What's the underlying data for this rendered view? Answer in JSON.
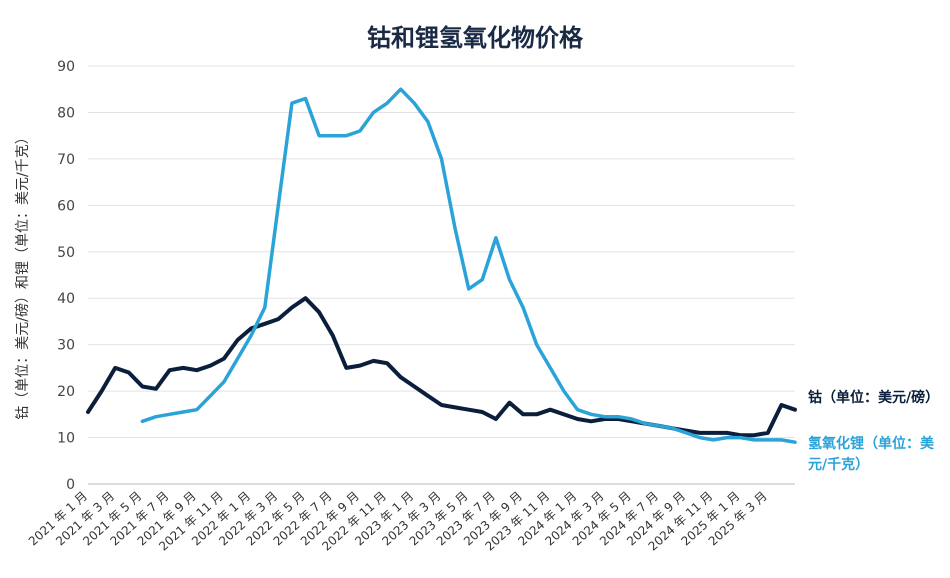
{
  "chart_data": {
    "type": "line",
    "title": "钴和锂氢氧化物价格",
    "ylabel": "钴（单位：美元/磅）和锂（单位：美元/千克）",
    "ylim": [
      0,
      90
    ],
    "yticks": [
      0,
      10,
      20,
      30,
      40,
      50,
      60,
      70,
      80,
      90
    ],
    "xlim": [
      "2021-01",
      "2025-05"
    ],
    "xticks": [
      {
        "label": "2021 年 1 月",
        "date": "2021-01"
      },
      {
        "label": "2021 年 3 月",
        "date": "2021-03"
      },
      {
        "label": "2021 年 5 月",
        "date": "2021-05"
      },
      {
        "label": "2021 年 7 月",
        "date": "2021-07"
      },
      {
        "label": "2021 年 9 月",
        "date": "2021-09"
      },
      {
        "label": "2021 年 11 月",
        "date": "2021-11"
      },
      {
        "label": "2022 年 1 月",
        "date": "2022-01"
      },
      {
        "label": "2022 年 3 月",
        "date": "2022-03"
      },
      {
        "label": "2022 年 5 月",
        "date": "2022-05"
      },
      {
        "label": "2022 年 7 月",
        "date": "2022-07"
      },
      {
        "label": "2022 年 9 月",
        "date": "2022-09"
      },
      {
        "label": "2022 年 11 月",
        "date": "2022-11"
      },
      {
        "label": "2023 年 1 月",
        "date": "2023-01"
      },
      {
        "label": "2023 年 3 月",
        "date": "2023-03"
      },
      {
        "label": "2023 年 5 月",
        "date": "2023-05"
      },
      {
        "label": "2023 年 7 月",
        "date": "2023-07"
      },
      {
        "label": "2023 年 9 月",
        "date": "2023-09"
      },
      {
        "label": "2023 年 11 月",
        "date": "2023-11"
      },
      {
        "label": "2024 年 1 月",
        "date": "2024-01"
      },
      {
        "label": "2024 年 3 月",
        "date": "2024-03"
      },
      {
        "label": "2024 年 5 月",
        "date": "2024-05"
      },
      {
        "label": "2024 年 7 月",
        "date": "2024-07"
      },
      {
        "label": "2024 年 9 月",
        "date": "2024-09"
      },
      {
        "label": "2024 年 11 月",
        "date": "2024-11"
      },
      {
        "label": "2025 年 1 月",
        "date": "2025-01"
      },
      {
        "label": "2025 年 3 月",
        "date": "2025-03"
      }
    ],
    "grid": true,
    "legend": "right",
    "series": [
      {
        "name": "钴（单位：美元/磅）",
        "color": "#0b1e3c",
        "points": [
          [
            "2021-01",
            15.5
          ],
          [
            "2021-02",
            20
          ],
          [
            "2021-03",
            25
          ],
          [
            "2021-04",
            24
          ],
          [
            "2021-05",
            21
          ],
          [
            "2021-06",
            20.5
          ],
          [
            "2021-07",
            24.5
          ],
          [
            "2021-08",
            25
          ],
          [
            "2021-09",
            24.5
          ],
          [
            "2021-10",
            25.5
          ],
          [
            "2021-11",
            27
          ],
          [
            "2021-12",
            31
          ],
          [
            "2022-01",
            33.5
          ],
          [
            "2022-02",
            34.5
          ],
          [
            "2022-03",
            35.5
          ],
          [
            "2022-04",
            38
          ],
          [
            "2022-05",
            40
          ],
          [
            "2022-06",
            37
          ],
          [
            "2022-07",
            32
          ],
          [
            "2022-08",
            25
          ],
          [
            "2022-09",
            25.5
          ],
          [
            "2022-10",
            26.5
          ],
          [
            "2022-11",
            26
          ],
          [
            "2022-12",
            23
          ],
          [
            "2023-01",
            21
          ],
          [
            "2023-02",
            19
          ],
          [
            "2023-03",
            17
          ],
          [
            "2023-04",
            16.5
          ],
          [
            "2023-05",
            16
          ],
          [
            "2023-06",
            15.5
          ],
          [
            "2023-07",
            14
          ],
          [
            "2023-08",
            17.5
          ],
          [
            "2023-09",
            15
          ],
          [
            "2023-10",
            15
          ],
          [
            "2023-11",
            16
          ],
          [
            "2024-01",
            14
          ],
          [
            "2024-02",
            13.5
          ],
          [
            "2024-03",
            14
          ],
          [
            "2024-04",
            14
          ],
          [
            "2024-05",
            13.5
          ],
          [
            "2024-06",
            13
          ],
          [
            "2024-07",
            12.5
          ],
          [
            "2024-08",
            12
          ],
          [
            "2024-09",
            11.5
          ],
          [
            "2024-10",
            11
          ],
          [
            "2024-11",
            11
          ],
          [
            "2024-12",
            11
          ],
          [
            "2025-01",
            10.5
          ],
          [
            "2025-02",
            10.5
          ],
          [
            "2025-03",
            11
          ],
          [
            "2025-04",
            17
          ],
          [
            "2025-05",
            16
          ]
        ]
      },
      {
        "name": "氢氧化锂（单位：美元/千克）",
        "color": "#2aa3d8",
        "points": [
          [
            "2021-05",
            13.5
          ],
          [
            "2021-06",
            14.5
          ],
          [
            "2021-07",
            15
          ],
          [
            "2021-08",
            15.5
          ],
          [
            "2021-09",
            16
          ],
          [
            "2021-10",
            19
          ],
          [
            "2021-11",
            22
          ],
          [
            "2021-12",
            27
          ],
          [
            "2022-01",
            32
          ],
          [
            "2022-02",
            38
          ],
          [
            "2022-03",
            60
          ],
          [
            "2022-04",
            82
          ],
          [
            "2022-05",
            83
          ],
          [
            "2022-06",
            75
          ],
          [
            "2022-07",
            75
          ],
          [
            "2022-08",
            75
          ],
          [
            "2022-09",
            76
          ],
          [
            "2022-10",
            80
          ],
          [
            "2022-11",
            82
          ],
          [
            "2022-12",
            85
          ],
          [
            "2023-01",
            82
          ],
          [
            "2023-02",
            78
          ],
          [
            "2023-03",
            70
          ],
          [
            "2023-04",
            55
          ],
          [
            "2023-05",
            42
          ],
          [
            "2023-06",
            44
          ],
          [
            "2023-07",
            53
          ],
          [
            "2023-08",
            44
          ],
          [
            "2023-09",
            38
          ],
          [
            "2023-10",
            30
          ],
          [
            "2023-11",
            25
          ],
          [
            "2023-12",
            20
          ],
          [
            "2024-01",
            16
          ],
          [
            "2024-02",
            15
          ],
          [
            "2024-03",
            14.5
          ],
          [
            "2024-04",
            14.5
          ],
          [
            "2024-05",
            14
          ],
          [
            "2024-06",
            13
          ],
          [
            "2024-07",
            12.5
          ],
          [
            "2024-08",
            12
          ],
          [
            "2024-09",
            11
          ],
          [
            "2024-10",
            10
          ],
          [
            "2024-11",
            9.5
          ],
          [
            "2024-12",
            10
          ],
          [
            "2025-01",
            10
          ],
          [
            "2025-02",
            9.5
          ],
          [
            "2025-03",
            9.5
          ],
          [
            "2025-04",
            9.5
          ],
          [
            "2025-05",
            9
          ]
        ]
      }
    ]
  },
  "legend": {
    "cobalt": "钴（单位：美元/磅）",
    "lithium": "氢氧化锂（单位：美元/千克）"
  }
}
